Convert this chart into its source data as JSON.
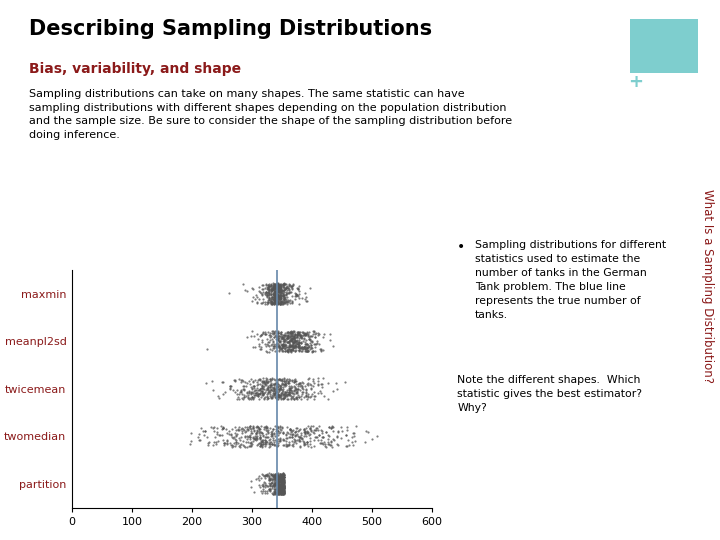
{
  "title": "Describing Sampling Distributions",
  "subtitle": "Bias, variability, and shape",
  "body_text": "Sampling distributions can take on many shapes. The same statistic can have\nsampling distributions with different shapes depending on the population distribution\nand the sample size. Be sure to consider the shape of the sampling distribution before\ndoing inference.",
  "sidebar_text": "What Is a Sampling Distribution?",
  "sidebar_color": "#7ecece",
  "sidebar_plus": "+",
  "title_color": "#000000",
  "subtitle_color": "#8b1a1a",
  "sidebar_text_color": "#8b1a1a",
  "bg_color": "#ffffff",
  "plot_labels": [
    "maxmin",
    "meanpl2sd",
    "twicemean",
    "twomedian",
    "partition"
  ],
  "true_value": 342,
  "x_min": 0,
  "x_max": 600,
  "x_ticks": [
    0,
    100,
    200,
    300,
    400,
    500,
    600
  ],
  "annotation1": "Sampling distributions for different\nstatistics used to estimate the\nnumber of tanks in the German\nTank problem. The blue line\nrepresents the true number of\ntanks.",
  "annotation2": "Note the different shapes.  Which\nstatistic gives the best estimator?\nWhy?",
  "bullet": "•",
  "plot_dot_color": "#555555",
  "blue_line_color": "#6688aa",
  "font_family": "DejaVu Sans"
}
